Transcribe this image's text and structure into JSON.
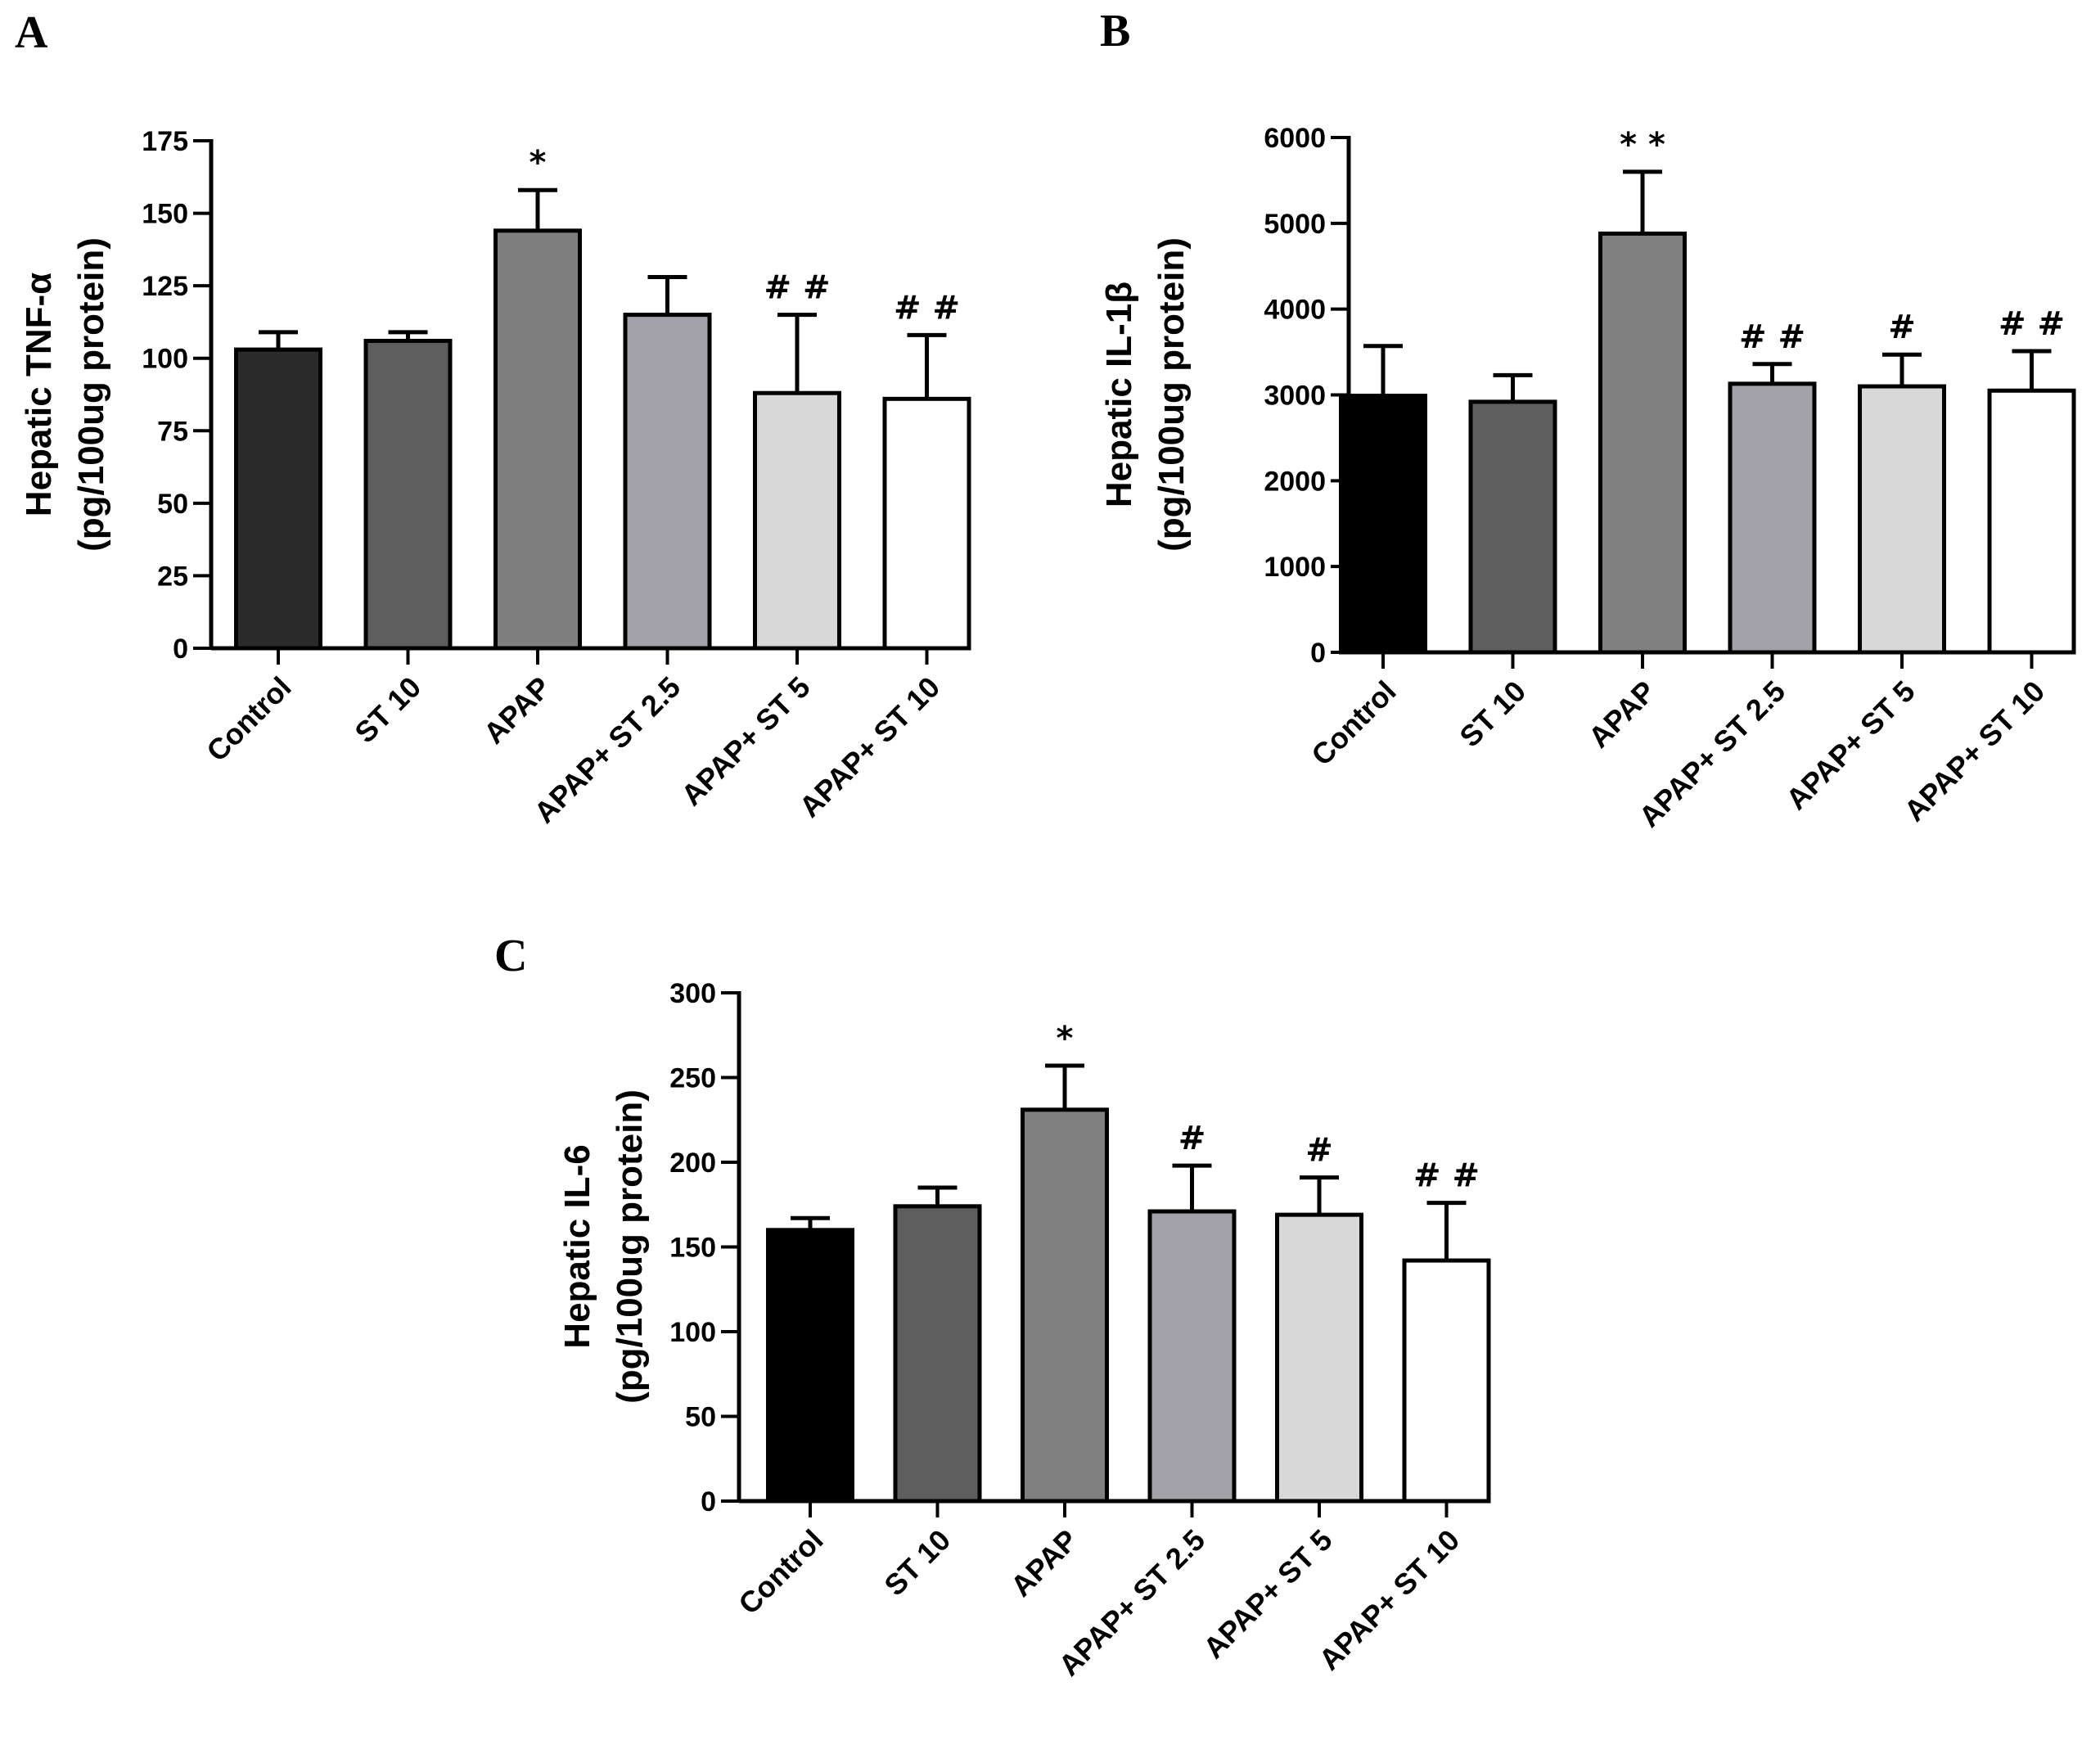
{
  "chart_data": [
    {
      "panel": "A",
      "type": "bar",
      "title": "",
      "ylabel": "Hepatic TNF-α",
      "ylabel2": "(pg/100ug protein)",
      "xlabel": "",
      "ylim": [
        0,
        175
      ],
      "yticks": [
        "0",
        "25",
        "50",
        "75",
        "100",
        "125",
        "150",
        "175"
      ],
      "categories": [
        "Control",
        "ST 10",
        "APAP",
        "APAP+ ST 2.5",
        "APAP+ ST 5",
        "APAP+ ST 10"
      ],
      "values": [
        103,
        106,
        144,
        115,
        88,
        86
      ],
      "errors": [
        6,
        3,
        14,
        13,
        27,
        22
      ],
      "annotations": [
        "",
        "",
        "*",
        "",
        "##",
        "##"
      ],
      "colors": [
        "#2b2b2b",
        "#5e5e5e",
        "#7f7f7f",
        "#a2a2a8",
        "#d8d8d8",
        "#ffffff"
      ],
      "grid": false
    },
    {
      "panel": "B",
      "type": "bar",
      "title": "",
      "ylabel": "Hepatic IL-1β",
      "ylabel2": "(pg/100ug protein)",
      "xlabel": "",
      "ylim": [
        0,
        6000
      ],
      "yticks": [
        "0",
        "1000",
        "2000",
        "3000",
        "4000",
        "5000",
        "6000"
      ],
      "categories": [
        "Control",
        "ST 10",
        "APAP",
        "APAP+ ST 2.5",
        "APAP+ ST 5",
        "APAP+ ST 10"
      ],
      "values": [
        2990,
        2920,
        4880,
        3130,
        3100,
        3050
      ],
      "errors": [
        580,
        310,
        720,
        230,
        370,
        460
      ],
      "annotations": [
        "",
        "",
        "**",
        "##",
        "#",
        "##"
      ],
      "colors": [
        "#000000",
        "#5e5e5e",
        "#808080",
        "#a2a2a8",
        "#d8d8d8",
        "#ffffff"
      ],
      "grid": false
    },
    {
      "panel": "C",
      "type": "bar",
      "title": "",
      "ylabel": "Hepatic IL-6",
      "ylabel2": "(pg/100ug protein)",
      "xlabel": "",
      "ylim": [
        0,
        300
      ],
      "yticks": [
        "0",
        "50",
        "100",
        "150",
        "200",
        "250",
        "300"
      ],
      "categories": [
        "Control",
        "ST 10",
        "APAP",
        "APAP+ ST 2.5",
        "APAP+ ST 5",
        "APAP+ ST 10"
      ],
      "values": [
        160,
        174,
        231,
        171,
        169,
        142
      ],
      "errors": [
        7,
        11,
        26,
        27,
        22,
        34
      ],
      "annotations": [
        "",
        "",
        "*",
        "#",
        "#",
        "##"
      ],
      "colors": [
        "#000000",
        "#5e5e5e",
        "#808080",
        "#a2a2a8",
        "#d8d8d8",
        "#ffffff"
      ],
      "grid": false
    }
  ]
}
